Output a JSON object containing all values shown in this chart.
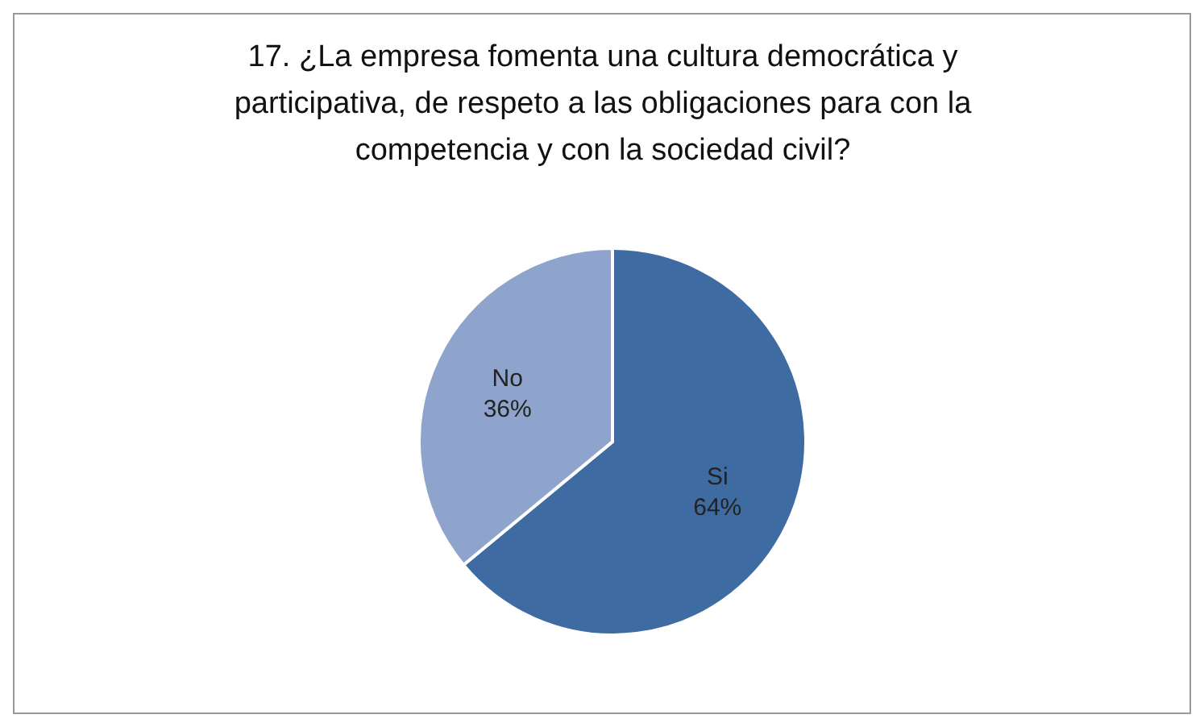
{
  "chart_data": {
    "type": "pie",
    "title": "17. ¿La empresa fomenta una cultura democrática y participativa, de respeto a las obligaciones para con la competencia y con la sociedad civil?",
    "categories": [
      "Si",
      "No"
    ],
    "values": [
      64,
      36
    ],
    "colors": [
      "#3f6ba3",
      "#8ea4cd"
    ],
    "value_labels": [
      "64%",
      "36%"
    ],
    "legend": false
  }
}
